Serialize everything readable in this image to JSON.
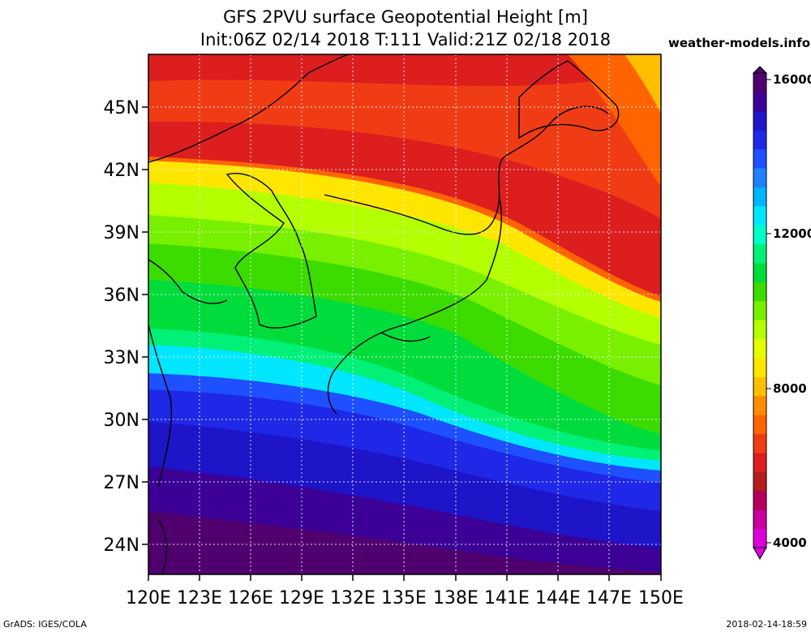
{
  "header": {
    "title_line1": "GFS 2PVU surface Geopotential Height [m]",
    "title_line2": "Init:06Z 02/14 2018 T:111 Valid:21Z 02/18 2018",
    "brand": "weather-models.info"
  },
  "footer": {
    "left": "GrADS: IGES/COLA",
    "right": "2018-02-14-18:59"
  },
  "map": {
    "region": "Japan / Korea / Northwest Pacific",
    "lon_range": [
      120,
      150
    ],
    "lat_range": [
      22.5,
      47.5
    ],
    "lat_labels": [
      "45N",
      "42N",
      "39N",
      "36N",
      "33N",
      "30N",
      "27N",
      "24N"
    ],
    "lon_labels": [
      "120E",
      "123E",
      "126E",
      "129E",
      "132E",
      "135E",
      "138E",
      "141E",
      "144E",
      "147E",
      "150E"
    ],
    "gridlines": "dotted white",
    "land_outline_color": "#000000"
  },
  "colorbar": {
    "labels": [
      "16000",
      "12000",
      "8000",
      "4000"
    ],
    "colors": [
      "#dc00dc",
      "#c800a0",
      "#b4005a",
      "#b41e1e",
      "#dc1e1e",
      "#f03c14",
      "#ff6400",
      "#ff8c00",
      "#ffbe00",
      "#ffe600",
      "#e6ff00",
      "#b4ff00",
      "#78f000",
      "#3cdc00",
      "#00dc3c",
      "#00f078",
      "#00ffc8",
      "#00e6ff",
      "#00b4ff",
      "#1e82ff",
      "#1e50ff",
      "#1e28e6",
      "#1e14c8",
      "#3c0096",
      "#50006e"
    ]
  }
}
